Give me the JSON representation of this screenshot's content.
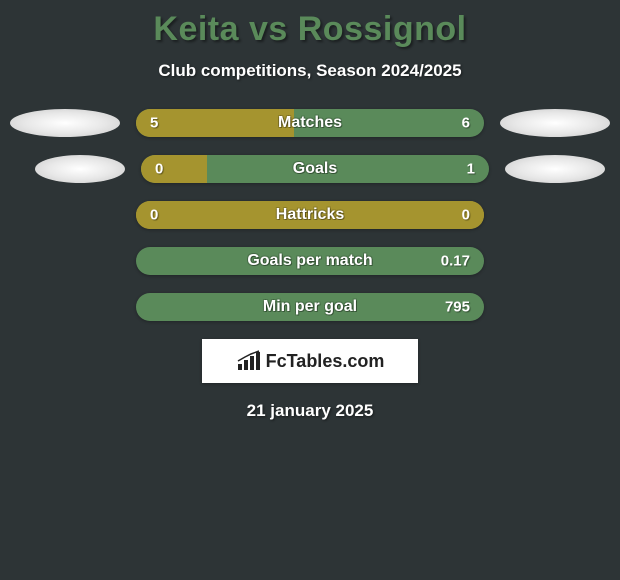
{
  "header": {
    "title": "Keita vs Rossignol",
    "subtitle": "Club competitions, Season 2024/2025",
    "title_color": "#5a8a5a"
  },
  "colors": {
    "left_bar": "#a5942f",
    "right_bar": "#5a8a5a",
    "background": "#2d3436"
  },
  "stats": [
    {
      "label": "Matches",
      "left_value": "5",
      "right_value": "6",
      "left_width_pct": 45.5,
      "show_ellipses": true
    },
    {
      "label": "Goals",
      "left_value": "0",
      "right_value": "1",
      "left_width_pct": 19,
      "show_ellipses": true,
      "ellipse_offset": true
    },
    {
      "label": "Hattricks",
      "left_value": "0",
      "right_value": "0",
      "left_width_pct": 100,
      "show_ellipses": false
    },
    {
      "label": "Goals per match",
      "left_value": "",
      "right_value": "0.17",
      "left_width_pct": 0,
      "show_ellipses": false
    },
    {
      "label": "Min per goal",
      "left_value": "",
      "right_value": "795",
      "left_width_pct": 0,
      "show_ellipses": false
    }
  ],
  "footer": {
    "logo_text": "FcTables.com",
    "date": "21 january 2025"
  }
}
